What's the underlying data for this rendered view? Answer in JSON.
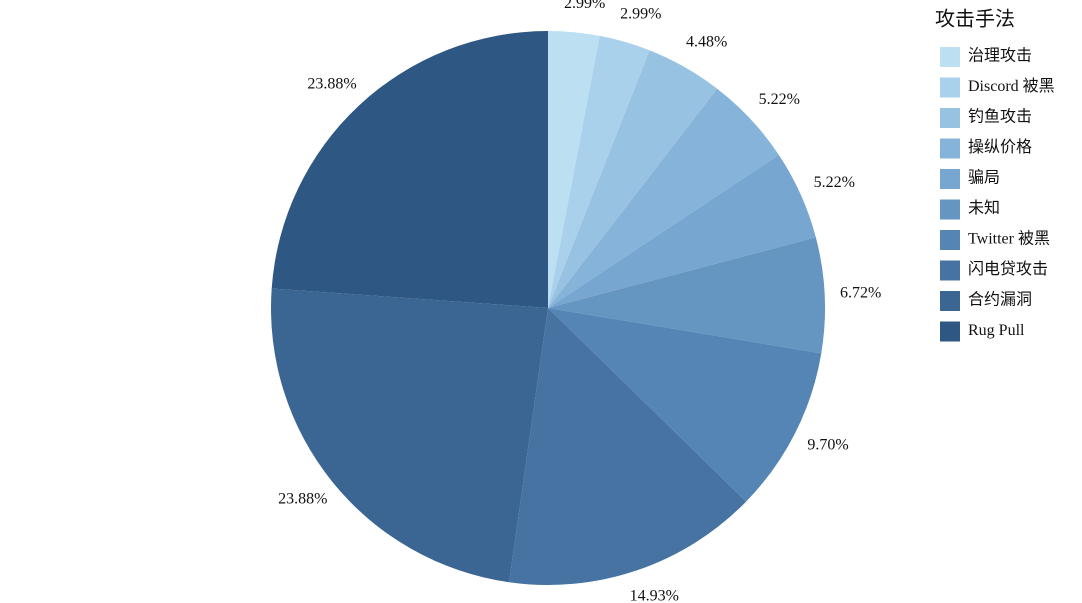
{
  "chart_data": {
    "type": "pie",
    "legend_title": "攻击手法",
    "categories": [
      "治理攻击",
      "Discord 被黑",
      "钓鱼攻击",
      "操纵价格",
      "骗局",
      "未知",
      "Twitter 被黑",
      "闪电贷攻击",
      "合约漏洞",
      "Rug Pull"
    ],
    "values": [
      2.99,
      2.99,
      4.48,
      5.22,
      5.22,
      6.72,
      9.7,
      14.93,
      23.88,
      23.88
    ],
    "value_labels": [
      "2.99%",
      "2.99%",
      "4.48%",
      "5.22%",
      "5.22%",
      "6.72%",
      "9.70%",
      "14.93%",
      "23.88%",
      "23.88%"
    ],
    "colors": [
      "#bcdff2",
      "#aad1ec",
      "#97c2e2",
      "#86b3d9",
      "#77a6d0",
      "#6595c1",
      "#5485b5",
      "#4673a2",
      "#3b6694",
      "#2e5784"
    ],
    "legend": "right"
  }
}
